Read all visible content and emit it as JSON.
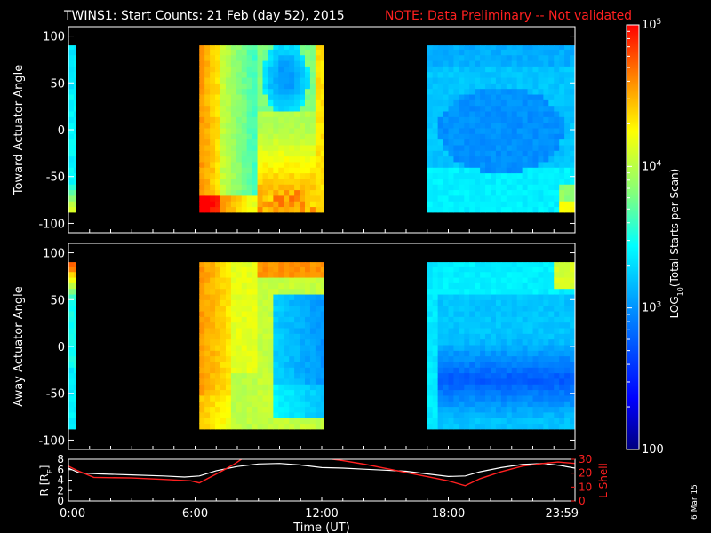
{
  "header": {
    "title": "TWINS1: Start Counts: 21 Feb (day  52), 2015",
    "note": "NOTE: Data Preliminary -- Not validated"
  },
  "footer": {
    "date_stamp": "6 Mar 15"
  },
  "colors": {
    "note": "#ff2020",
    "l_shell": "#ff2020",
    "radius": "#ffffff",
    "background": "#000000"
  },
  "chart_data": [
    {
      "type": "heatmap",
      "panel": "toward",
      "ylabel": "Toward Actuator Angle",
      "ylim": [
        -110,
        110
      ],
      "y_ticks": [
        "100",
        "50",
        "0",
        "-50",
        "-100"
      ],
      "y_tick_values": [
        100,
        50,
        0,
        -50,
        -100
      ],
      "x_unit": "hours UT",
      "data_intervals_hours": [
        [
          0.0,
          0.35
        ],
        [
          6.2,
          12.1
        ],
        [
          17.0,
          24.0
        ]
      ],
      "angle_range": [
        -88,
        90
      ],
      "colorscale": "log",
      "clim": [
        100,
        100000
      ]
    },
    {
      "type": "heatmap",
      "panel": "away",
      "ylabel": "Away Actuator Angle",
      "ylim": [
        -110,
        110
      ],
      "y_ticks": [
        "100",
        "50",
        "0",
        "-50",
        "-100"
      ],
      "y_tick_values": [
        100,
        50,
        0,
        -50,
        -100
      ],
      "x_unit": "hours UT",
      "data_intervals_hours": [
        [
          0.0,
          0.35
        ],
        [
          6.2,
          12.1
        ],
        [
          17.0,
          24.0
        ]
      ],
      "angle_range": [
        -88,
        90
      ],
      "colorscale": "log",
      "clim": [
        100,
        100000
      ]
    },
    {
      "type": "line",
      "panel": "orbit",
      "xlabel": "Time (UT)",
      "x_ticks": [
        "0:00",
        "6:00",
        "12:00",
        "18:00",
        "23:59"
      ],
      "x_tick_values": [
        0,
        6,
        12,
        18,
        24
      ],
      "xlim": [
        0,
        24
      ],
      "ylabel": "R [R",
      "ylabel_sub": "E",
      "ylabel_end": "]",
      "ylim": [
        0,
        8
      ],
      "y_ticks": [
        "8",
        "6",
        "4",
        "2",
        "0"
      ],
      "y_tick_values": [
        8,
        6,
        4,
        2,
        0
      ],
      "y2label": "L Shell",
      "y2lim": [
        0,
        30
      ],
      "y2_ticks": [
        "30",
        "20",
        "10",
        "0"
      ],
      "y2_tick_values": [
        30,
        20,
        10,
        0
      ],
      "series": [
        {
          "axis": "left",
          "x": [
            0,
            0.5,
            1.5,
            3,
            4.5,
            5.5,
            6.2,
            7,
            8,
            9,
            10,
            11,
            12,
            13,
            14,
            15,
            16,
            17,
            18,
            18.8,
            19.5,
            20.5,
            21.5,
            22.5,
            23.3,
            24
          ],
          "y": [
            6.3,
            5.4,
            5.2,
            5.0,
            4.8,
            4.6,
            4.8,
            5.8,
            6.6,
            7.1,
            7.2,
            6.9,
            6.4,
            6.3,
            6.1,
            5.9,
            5.7,
            5.2,
            4.7,
            4.8,
            5.6,
            6.4,
            7.0,
            7.2,
            6.8,
            6.3
          ]
        },
        {
          "axis": "right",
          "segments": [
            {
              "x": [
                0,
                0.4,
                1.2,
                3,
                4.5,
                5.8,
                6.2,
                7.2,
                7.8,
                8.3
              ],
              "y": [
                25,
                22,
                17,
                16.5,
                15.5,
                14.5,
                13,
                21,
                26,
                31
              ]
            },
            {
              "x": [
                12.0,
                13,
                14,
                15,
                16,
                17,
                18,
                18.8,
                19.5,
                20.5,
                21.5,
                22.5,
                23.2,
                24
              ],
              "y": [
                31,
                29,
                26.5,
                23.5,
                20.5,
                17.5,
                14.5,
                11,
                16,
                21,
                25,
                27,
                28,
                27
              ]
            }
          ]
        }
      ]
    },
    {
      "type": "heatmap",
      "panel": "colorbar",
      "ylabel": "LOG",
      "ylabel_sub": "10",
      "ylabel_end": "(Total Starts per Scan)",
      "ticks": [
        {
          "base": "10",
          "exp": "5",
          "value": 100000
        },
        {
          "base": "10",
          "exp": "4",
          "value": 10000
        },
        {
          "base": "10",
          "exp": "3",
          "value": 1000
        },
        {
          "base": "100",
          "exp": "",
          "value": 100
        }
      ],
      "clim": [
        100,
        100000
      ]
    }
  ]
}
